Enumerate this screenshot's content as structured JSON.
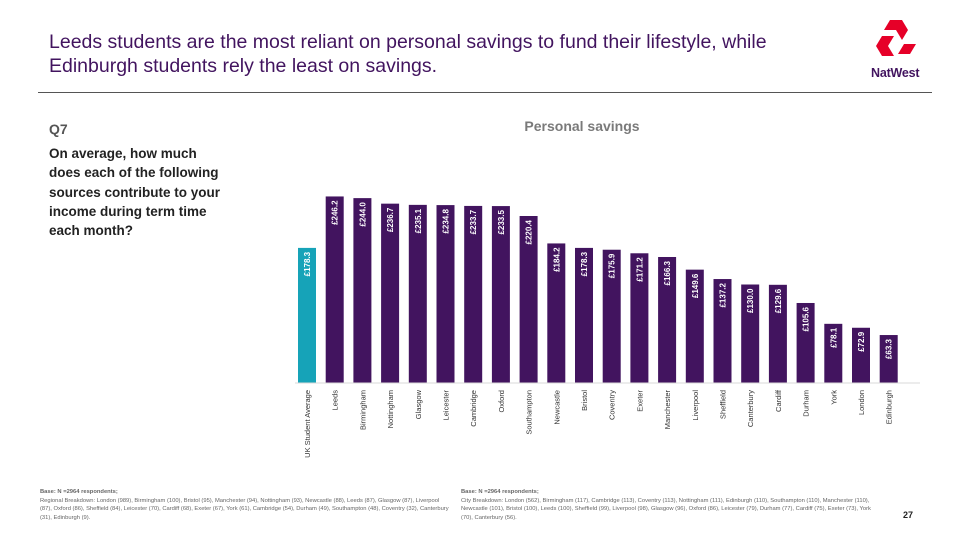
{
  "headline": "Leeds students are the most reliant on personal savings to fund their lifestyle, while Edinburgh students rely the least on savings.",
  "brand": {
    "logo_text": "NatWest",
    "colors": {
      "primary": "#42145f",
      "accent": "#e60028",
      "highlight": "#16a3b8"
    }
  },
  "question": {
    "number": "Q7",
    "text": "On average, how much does each of the following sources contribute to your income during term time each month?"
  },
  "chart_data": {
    "type": "bar",
    "title": "Personal savings",
    "categories": [
      "UK Student Average",
      "Leeds",
      "Birmingham",
      "Nottingham",
      "Glasgow",
      "Leicester",
      "Cambridge",
      "Oxford",
      "Southampton",
      "Newcastle",
      "Bristol",
      "Coventry",
      "Exeter",
      "Manchester",
      "Liverpool",
      "Sheffield",
      "Canterbury",
      "Cardiff",
      "Durham",
      "York",
      "London",
      "Edinburgh"
    ],
    "values": [
      178.3,
      246.2,
      244.0,
      236.7,
      235.1,
      234.8,
      233.7,
      233.5,
      220.4,
      184.2,
      178.3,
      175.9,
      171.2,
      166.3,
      149.6,
      137.2,
      130.0,
      129.6,
      105.6,
      78.1,
      72.9,
      63.3
    ],
    "value_labels": [
      "£178.3",
      "£246.2",
      "£244.0",
      "£236.7",
      "£235.1",
      "£234.8",
      "£233.7",
      "£233.5",
      "£220.4",
      "£184.2",
      "£178.3",
      "£175.9",
      "£171.2",
      "£166.3",
      "£149.6",
      "£137.2",
      "£130.0",
      "£129.6",
      "£105.6",
      "£78.1",
      "£72.9",
      "£63.3"
    ],
    "highlight_index": 0,
    "bar_color": "#42145f",
    "highlight_color": "#16a3b8",
    "ylim": [
      0,
      260
    ],
    "grid": false,
    "legend": "none"
  },
  "footnotes": {
    "left_title": "Base: N =2964 respondents;",
    "left_text": "Regional Breakdown: London (989), Birmingham (100), Bristol (95), Manchester (94), Nottingham (93), Newcastle (88), Leeds (87), Glasgow (87), Liverpool (87), Oxford (86), Sheffield (84), Leicester (70), Cardiff (68), Exeter (67), York (61), Cambridge (54), Durham (49), Southampton (48), Coventry (32), Canterbury (31), Edinburgh (9).",
    "right_title": "Base: N =2964 respondents;",
    "right_text": "City Breakdown: London (562), Birmingham (117), Cambridge (113), Coventry (113), Nottingham (111), Edinburgh (110), Southampton (110), Manchester (110), Newcastle (101), Bristol (100), Leeds (100), Sheffield (99), Liverpool (98), Glasgow (96), Oxford (86), Leicester (79), Durham (77), Cardiff (75), Exeter (73), York (70), Canterbury (56)."
  },
  "page_number": "27"
}
